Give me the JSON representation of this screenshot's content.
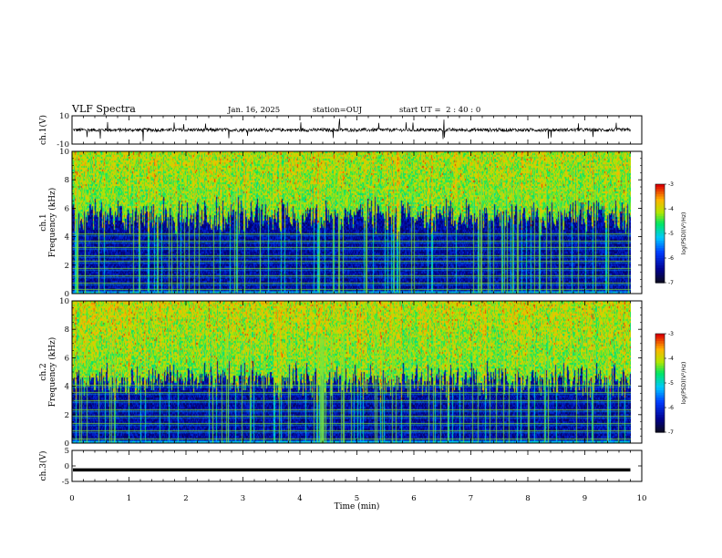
{
  "header": {
    "title": "VLF Spectra",
    "date": "Jan. 16, 2025",
    "station": "station=OUJ",
    "start_ut": "start UT =  2 : 40 : 0"
  },
  "chart_data": [
    {
      "type": "line",
      "title": "",
      "ylabel": "ch.1(V)",
      "ylim": [
        -10,
        10
      ],
      "yticks": [
        "10",
        "-10"
      ],
      "series": [
        {
          "baseline": 0,
          "noise_amplitude": 1.2,
          "spike_amplitude": 8,
          "color": "#000000"
        }
      ]
    },
    {
      "type": "heatmap",
      "ylabel": [
        "ch.1",
        "Frequency  (kHz)"
      ],
      "ylim": [
        0,
        10
      ],
      "yticks": [
        "0",
        "2",
        "4",
        "6",
        "8",
        "10"
      ],
      "colorbar": {
        "label": "log(PSD)(V²/Hz)",
        "range": [
          -7,
          -3
        ],
        "ticks": [
          "-3",
          "-4",
          "-5",
          "-6",
          "-7"
        ]
      },
      "description_profile": {
        "noise_floor_top_khz": 5.5,
        "tone_bands_khz": [
          0.3,
          0.8,
          1.3,
          1.8,
          2.3,
          2.7,
          3.3,
          3.7,
          4.2
        ]
      }
    },
    {
      "type": "heatmap",
      "ylabel": [
        "ch.2",
        "Frequency  (kHz)"
      ],
      "ylim": [
        0,
        10
      ],
      "yticks": [
        "0",
        "2",
        "4",
        "6",
        "8",
        "10"
      ],
      "colorbar": {
        "label": "log(PSD)(V²/Hz)",
        "range": [
          -7,
          -3
        ],
        "ticks": [
          "-3",
          "-4",
          "-5",
          "-6",
          "-7"
        ]
      },
      "description_profile": {
        "noise_floor_top_khz": 4.5,
        "tone_bands_khz": [
          0.3,
          0.9,
          1.4,
          1.9,
          2.4,
          3.0,
          3.6,
          4.1
        ]
      }
    },
    {
      "type": "line",
      "ylabel": "ch.3(V)",
      "ylim": [
        -5,
        5
      ],
      "yticks": [
        "5",
        "0",
        "-5"
      ],
      "series": [
        {
          "constant_value": -1.3,
          "color": "#000000"
        }
      ]
    }
  ],
  "xaxis": {
    "label": "Time  (min)",
    "range": [
      0,
      10
    ],
    "ticks": [
      "0",
      "1",
      "2",
      "3",
      "4",
      "5",
      "6",
      "7",
      "8",
      "9",
      "10"
    ],
    "data_end": 9.8
  }
}
